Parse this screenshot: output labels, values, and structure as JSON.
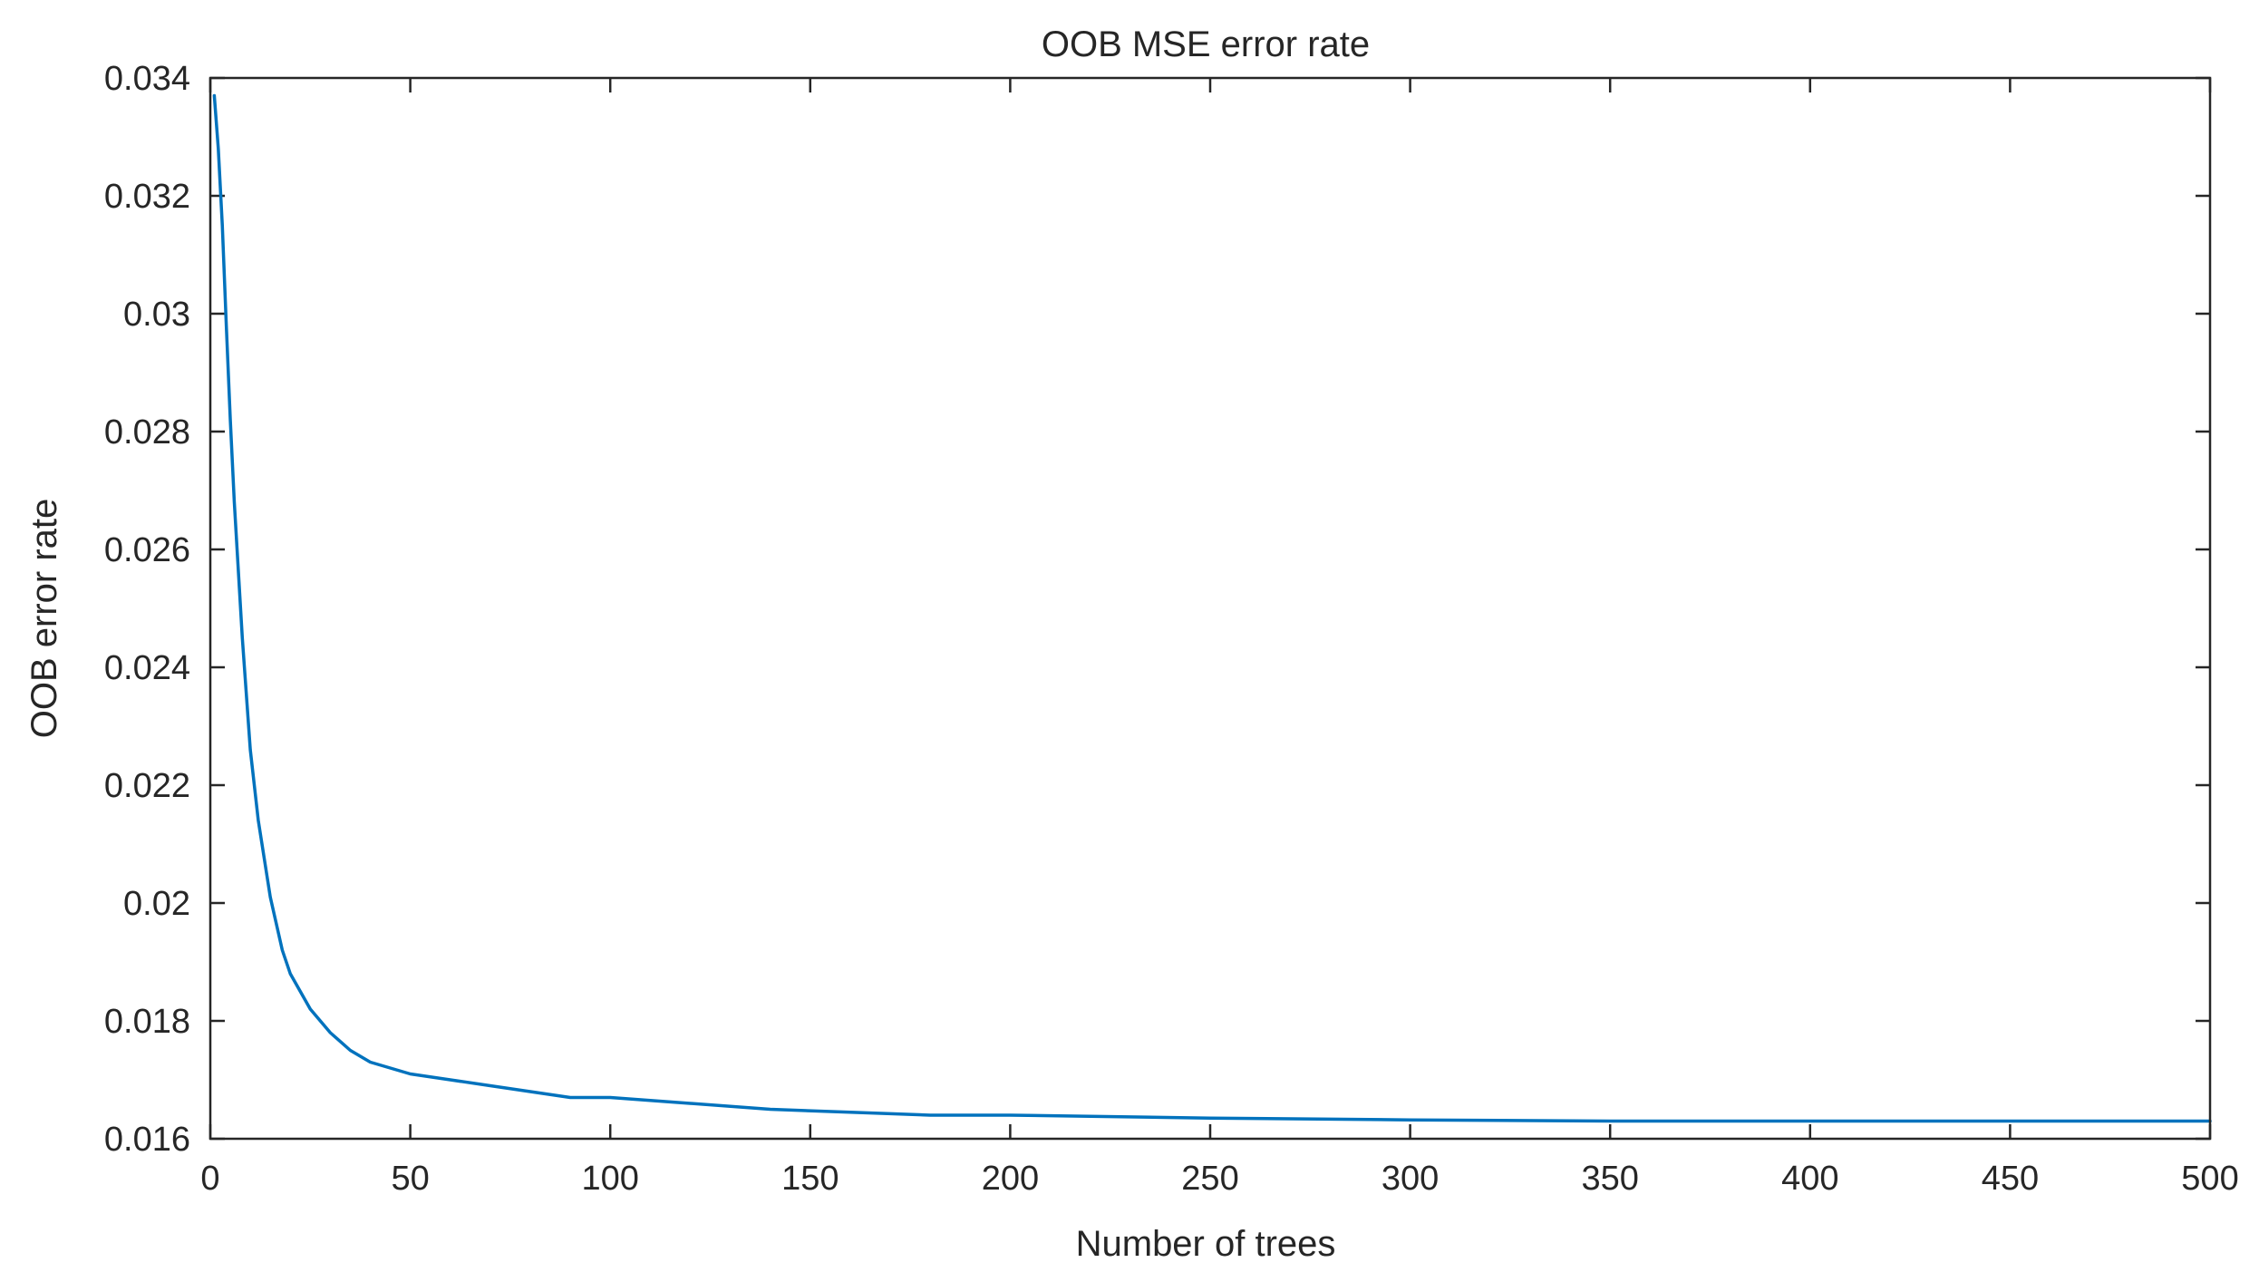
{
  "chart_data": {
    "type": "line",
    "title": "OOB MSE error rate",
    "xlabel": "Number of trees",
    "ylabel": "OOB error rate",
    "xlim": [
      0,
      500
    ],
    "ylim": [
      0.016,
      0.034
    ],
    "x_ticks": [
      0,
      50,
      100,
      150,
      200,
      250,
      300,
      350,
      400,
      450,
      500
    ],
    "x_tick_labels": [
      "0",
      "50",
      "100",
      "150",
      "200",
      "250",
      "300",
      "350",
      "400",
      "450",
      "500"
    ],
    "y_ticks": [
      0.016,
      0.018,
      0.02,
      0.022,
      0.024,
      0.026,
      0.028,
      0.03,
      0.032,
      0.034
    ],
    "y_tick_labels": [
      "0.016",
      "0.018",
      "0.02",
      "0.022",
      "0.024",
      "0.026",
      "0.028",
      "0.03",
      "0.032",
      "0.034"
    ],
    "grid": false,
    "line_color": "#0072BD",
    "series": [
      {
        "x": [
          1,
          2,
          3,
          4,
          5,
          6,
          8,
          10,
          12,
          15,
          18,
          20,
          25,
          30,
          35,
          40,
          45,
          50,
          60,
          70,
          80,
          90,
          100,
          120,
          140,
          160,
          180,
          200,
          250,
          300,
          350,
          400,
          450,
          500
        ],
        "values": [
          0.0337,
          0.0328,
          0.0315,
          0.0298,
          0.0282,
          0.0268,
          0.0245,
          0.0226,
          0.0214,
          0.0201,
          0.0192,
          0.0188,
          0.0182,
          0.0178,
          0.0175,
          0.0173,
          0.0172,
          0.0171,
          0.017,
          0.0169,
          0.0168,
          0.0167,
          0.0167,
          0.0166,
          0.0165,
          0.01645,
          0.0164,
          0.0164,
          0.01635,
          0.01632,
          0.0163,
          0.0163,
          0.0163,
          0.0163
        ]
      }
    ]
  }
}
